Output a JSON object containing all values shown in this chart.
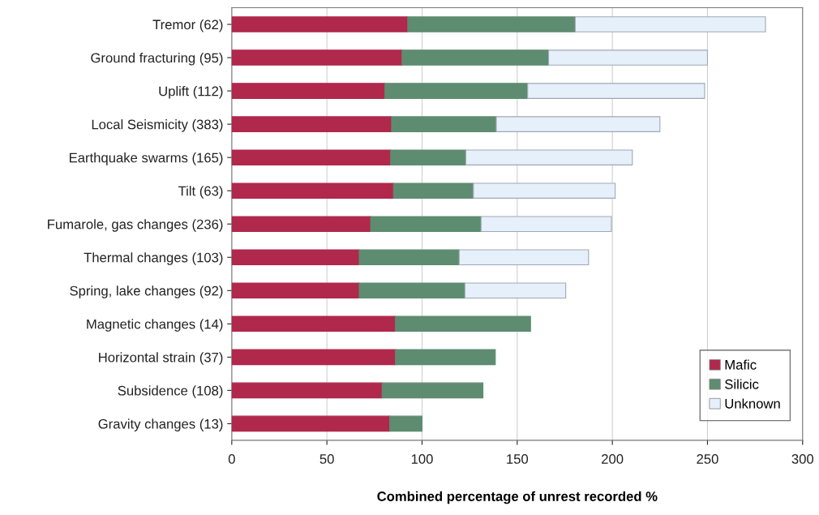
{
  "chart_data": {
    "type": "bar",
    "orientation": "horizontal",
    "stacked": true,
    "xlabel": "Combined percentage of unrest recorded %",
    "categories": [
      "Tremor (62)",
      "Ground fracturing (95)",
      "Uplift (112)",
      "Local Seismicity (383)",
      "Earthquake swarms (165)",
      "Tilt (63)",
      "Fumarole, gas changes (236)",
      "Thermal changes (103)",
      "Spring, lake changes (92)",
      "Magnetic changes (14)",
      "Horizontal strain (37)",
      "Subsidence (108)",
      "Gravity changes (13)"
    ],
    "series": [
      {
        "name": "Mafic",
        "color": "#b0284c",
        "values": [
          92.5,
          89.5,
          80.5,
          84,
          83.5,
          85,
          73,
          67,
          67,
          86,
          86,
          79,
          83
        ]
      },
      {
        "name": "Silicic",
        "color": "#5e8c70",
        "values": [
          88,
          77,
          75,
          55,
          39.5,
          42,
          58,
          52.5,
          55.5,
          71,
          52.5,
          53,
          17
        ]
      },
      {
        "name": "Unknown",
        "color": "#e6f0fa",
        "values": [
          100,
          83.5,
          93,
          86,
          87.5,
          74.5,
          68.5,
          68,
          53,
          null,
          null,
          null,
          null
        ]
      }
    ],
    "xlim": [
      0,
      300
    ],
    "xticks": [
      0,
      50,
      100,
      150,
      200,
      250,
      300
    ],
    "grid": "x",
    "legend": "bottom right"
  }
}
